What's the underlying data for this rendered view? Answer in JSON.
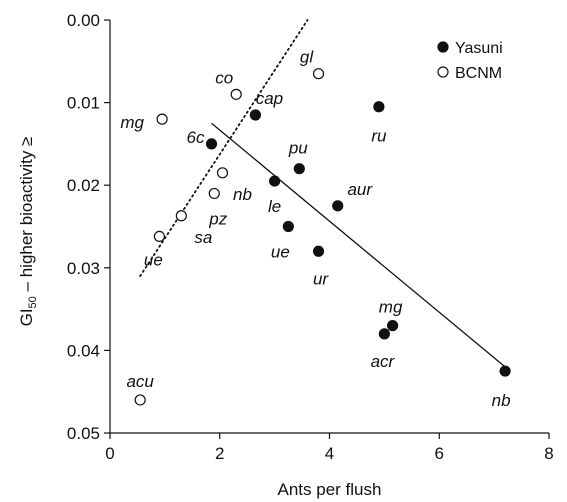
{
  "chart_data": {
    "type": "scatter",
    "xlabel": "Ants per flush",
    "ylabel_prefix": "GI",
    "ylabel_sub": "50",
    "ylabel_suffix": " – higher bioactivity ≥",
    "xlim": [
      0,
      8
    ],
    "ylim": [
      0.0,
      0.05
    ],
    "y_inverted": true,
    "x_ticks": [
      {
        "value": 0,
        "label": "0"
      },
      {
        "value": 2,
        "label": "2"
      },
      {
        "value": 4,
        "label": "4"
      },
      {
        "value": 6,
        "label": "6"
      },
      {
        "value": 8,
        "label": "8"
      }
    ],
    "y_ticks": [
      {
        "value": 0.0,
        "label": "0.00"
      },
      {
        "value": 0.01,
        "label": "0.01"
      },
      {
        "value": 0.02,
        "label": "0.02"
      },
      {
        "value": 0.03,
        "label": "0.03"
      },
      {
        "value": 0.04,
        "label": "0.04"
      },
      {
        "value": 0.05,
        "label": "0.05"
      }
    ],
    "grid": false,
    "legend_position": "top-right",
    "series": [
      {
        "name": "Yasuni",
        "marker": "filled-circle",
        "color": "#111111",
        "points": [
          {
            "x": 4.9,
            "y": 0.0105,
            "label": "ru"
          },
          {
            "x": 2.65,
            "y": 0.0115,
            "label": "cap"
          },
          {
            "x": 1.85,
            "y": 0.015,
            "label": "6c"
          },
          {
            "x": 3.0,
            "y": 0.0195,
            "label": "le"
          },
          {
            "x": 3.45,
            "y": 0.018,
            "label": "pu"
          },
          {
            "x": 4.15,
            "y": 0.0225,
            "label": "aur"
          },
          {
            "x": 3.25,
            "y": 0.025,
            "label": "ue"
          },
          {
            "x": 3.8,
            "y": 0.028,
            "label": "ur"
          },
          {
            "x": 5.15,
            "y": 0.037,
            "label": "mg"
          },
          {
            "x": 5.0,
            "y": 0.038,
            "label": "acr"
          },
          {
            "x": 7.2,
            "y": 0.0425,
            "label": "nb"
          }
        ],
        "trendline": {
          "style": "solid",
          "x": [
            1.85,
            7.2
          ],
          "y": [
            0.0125,
            0.042
          ]
        }
      },
      {
        "name": "BCNM",
        "marker": "open-circle",
        "color": "#111111",
        "points": [
          {
            "x": 3.8,
            "y": 0.0065,
            "label": "gl"
          },
          {
            "x": 2.3,
            "y": 0.009,
            "label": "co"
          },
          {
            "x": 0.95,
            "y": 0.012,
            "label": "mg"
          },
          {
            "x": 2.05,
            "y": 0.0185,
            "label": "nb"
          },
          {
            "x": 1.9,
            "y": 0.021,
            "label": "pz"
          },
          {
            "x": 1.3,
            "y": 0.0237,
            "label": "sa"
          },
          {
            "x": 0.9,
            "y": 0.0262,
            "label": "ue"
          },
          {
            "x": 0.55,
            "y": 0.046,
            "label": "acu"
          }
        ],
        "trendline": {
          "style": "dotted",
          "x": [
            0.55,
            3.6
          ],
          "y": [
            0.031,
            0.0
          ]
        }
      }
    ]
  }
}
